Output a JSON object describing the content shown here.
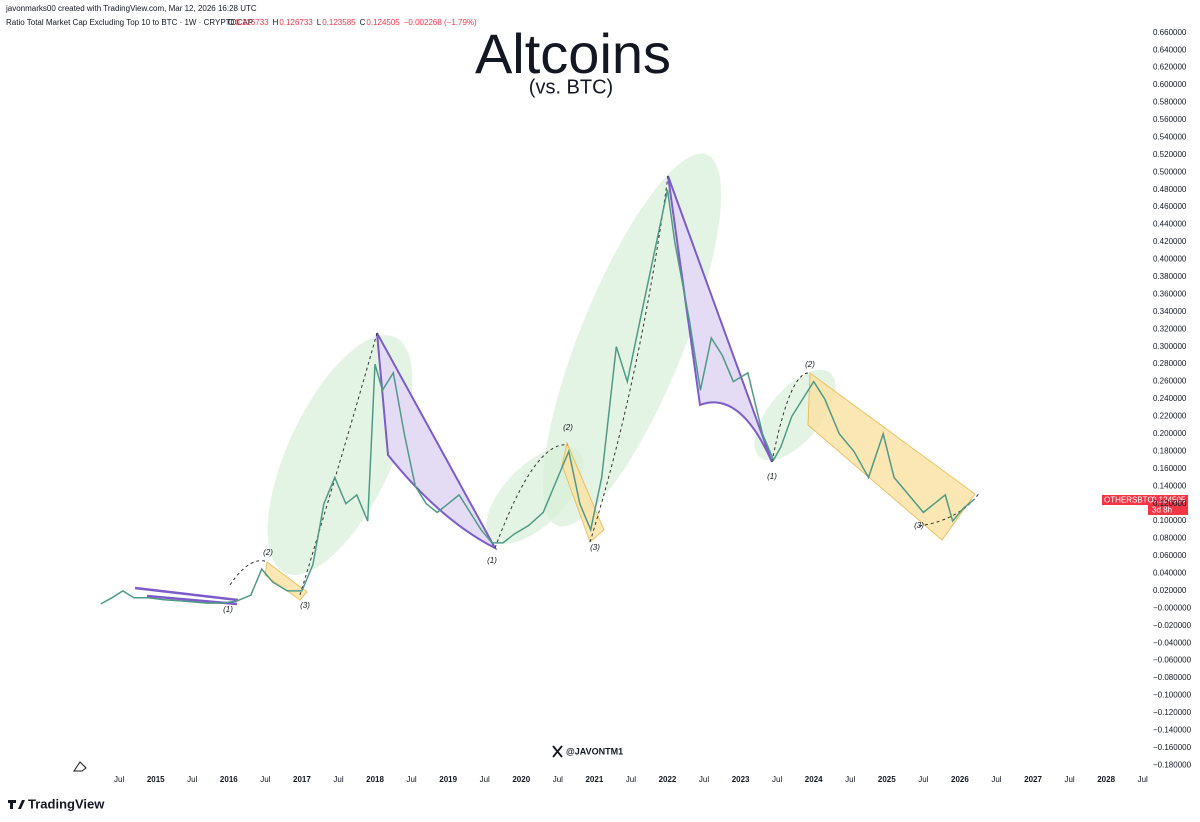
{
  "chart_data": {
    "type": "line",
    "header": "javonmarks00 created with TradingView.com, Mar 12, 2026 16:28 UTC",
    "symbol": "Ratio Total Market Cap Excluding Top 10 to BTC · 1W · CRYPTOCAP",
    "ohlc": [
      {
        "key": "O",
        "text": "0.126733"
      },
      {
        "key": "H",
        "text": "0.126733"
      },
      {
        "key": "L",
        "text": "0.123585"
      },
      {
        "key": "C",
        "text": "0.124505"
      }
    ],
    "change": "−0.002268 (−1.79%)",
    "title": "Altcoins",
    "subtitle": "(vs. BTC)",
    "watermark": "@JAVONTM1",
    "footer": "TradingView",
    "price_label": {
      "name": "OTHERSBTC",
      "value": "0.124505",
      "countdown": "3d 8h"
    },
    "annotations": [
      "(2)",
      "(3)",
      "(1)",
      "(1)",
      "(2)",
      "(3)",
      "(1)",
      "(2)",
      "(3)"
    ],
    "series": [
      {
        "name": "OTHERSBTC",
        "color": "#4f9a86",
        "x": [
          2014.25,
          2014.4,
          2014.55,
          2014.7,
          2014.9,
          2015.1,
          2015.4,
          2015.7,
          2015.9,
          2016.1,
          2016.3,
          2016.45,
          2016.6,
          2016.8,
          2017.0,
          2017.15,
          2017.3,
          2017.45,
          2017.6,
          2017.75,
          2017.9,
          2018.0,
          2018.1,
          2018.25,
          2018.4,
          2018.55,
          2018.7,
          2018.85,
          2019.0,
          2019.15,
          2019.3,
          2019.45,
          2019.6,
          2019.75,
          2019.9,
          2020.1,
          2020.3,
          2020.5,
          2020.65,
          2020.8,
          2020.95,
          2021.1,
          2021.3,
          2021.45,
          2021.6,
          2021.75,
          2021.9,
          2022.0,
          2022.1,
          2022.3,
          2022.45,
          2022.6,
          2022.75,
          2022.9,
          2023.1,
          2023.3,
          2023.45,
          2023.55,
          2023.7,
          2023.85,
          2024.0,
          2024.15,
          2024.35,
          2024.55,
          2024.75,
          2024.95,
          2025.1,
          2025.3,
          2025.5,
          2025.65,
          2025.8,
          2025.9,
          2026.05,
          2026.19
        ],
        "values": [
          0.005,
          0.012,
          0.02,
          0.012,
          0.012,
          0.01,
          0.008,
          0.006,
          0.006,
          0.008,
          0.015,
          0.045,
          0.03,
          0.02,
          0.02,
          0.05,
          0.12,
          0.15,
          0.12,
          0.13,
          0.1,
          0.28,
          0.25,
          0.27,
          0.2,
          0.14,
          0.12,
          0.11,
          0.12,
          0.13,
          0.11,
          0.09,
          0.075,
          0.075,
          0.085,
          0.095,
          0.11,
          0.15,
          0.18,
          0.12,
          0.09,
          0.15,
          0.3,
          0.26,
          0.32,
          0.38,
          0.44,
          0.48,
          0.42,
          0.33,
          0.25,
          0.31,
          0.29,
          0.26,
          0.27,
          0.2,
          0.17,
          0.185,
          0.22,
          0.24,
          0.26,
          0.24,
          0.2,
          0.18,
          0.15,
          0.2,
          0.15,
          0.13,
          0.11,
          0.12,
          0.13,
          0.1,
          0.115,
          0.1245
        ]
      }
    ],
    "xlim": [
      2012.87,
      2028.6
    ],
    "xticks": [
      {
        "value": 2014.5,
        "label": "Jul"
      },
      2015,
      {
        "value": 2015.5,
        "label": "Jul"
      },
      2016,
      {
        "value": 2016.5,
        "label": "Jul"
      },
      2017,
      {
        "value": 2017.5,
        "label": "Jul"
      },
      2018,
      {
        "value": 2018.5,
        "label": "Jul"
      },
      2019,
      {
        "value": 2019.5,
        "label": "Jul"
      },
      2020,
      {
        "value": 2020.5,
        "label": "Jul"
      },
      2021,
      {
        "value": 2021.5,
        "label": "Jul"
      },
      2022,
      {
        "value": 2022.5,
        "label": "Jul"
      },
      2023,
      {
        "value": 2023.5,
        "label": "Jul"
      },
      2024,
      {
        "value": 2024.5,
        "label": "Jul"
      },
      2025,
      {
        "value": 2025.5,
        "label": "Jul"
      },
      2026,
      {
        "value": 2026.5,
        "label": "Jul"
      },
      2027,
      {
        "value": 2027.5,
        "label": "Jul"
      },
      2028,
      {
        "value": 2028.5,
        "label": "Jul"
      }
    ],
    "ylim": [
      -0.19,
      0.67
    ],
    "yticks": [
      {
        "value": 0.66,
        "label": "0.660000"
      },
      {
        "value": 0.64,
        "label": "0.640000"
      },
      {
        "value": 0.62,
        "label": "0.620000"
      },
      {
        "value": 0.6,
        "label": "0.600000"
      },
      {
        "value": 0.58,
        "label": "0.580000"
      },
      {
        "value": 0.56,
        "label": "0.560000"
      },
      {
        "value": 0.54,
        "label": "0.540000"
      },
      {
        "value": 0.52,
        "label": "0.520000"
      },
      {
        "value": 0.5,
        "label": "0.500000"
      },
      {
        "value": 0.48,
        "label": "0.480000"
      },
      {
        "value": 0.46,
        "label": "0.460000"
      },
      {
        "value": 0.44,
        "label": "0.440000"
      },
      {
        "value": 0.42,
        "label": "0.420000"
      },
      {
        "value": 0.4,
        "label": "0.400000"
      },
      {
        "value": 0.38,
        "label": "0.380000"
      },
      {
        "value": 0.36,
        "label": "0.360000"
      },
      {
        "value": 0.34,
        "label": "0.340000"
      },
      {
        "value": 0.32,
        "label": "0.320000"
      },
      {
        "value": 0.3,
        "label": "0.300000"
      },
      {
        "value": 0.28,
        "label": "0.280000"
      },
      {
        "value": 0.26,
        "label": "0.260000"
      },
      {
        "value": 0.24,
        "label": "0.240000"
      },
      {
        "value": 0.22,
        "label": "0.220000"
      },
      {
        "value": 0.2,
        "label": "0.200000"
      },
      {
        "value": 0.18,
        "label": "0.180000"
      },
      {
        "value": 0.16,
        "label": "0.160000"
      },
      {
        "value": 0.14,
        "label": "0.140000"
      },
      {
        "value": 0.12,
        "label": "0.120000"
      },
      {
        "value": 0.1,
        "label": "0.100000"
      },
      {
        "value": 0.08,
        "label": "0.080000"
      },
      {
        "value": 0.06,
        "label": "0.060000"
      },
      {
        "value": 0.04,
        "label": "0.040000"
      },
      {
        "value": 0.02,
        "label": "0.020000"
      },
      {
        "value": 0,
        "label": "−0.000000"
      },
      {
        "value": -0.02,
        "label": "−0.020000"
      },
      {
        "value": -0.04,
        "label": "−0.040000"
      },
      {
        "value": -0.06,
        "label": "−0.060000"
      },
      {
        "value": -0.08,
        "label": "−0.080000"
      },
      {
        "value": -0.1,
        "label": "−0.100000"
      },
      {
        "value": -0.12,
        "label": "−0.120000"
      },
      {
        "value": -0.14,
        "label": "−0.140000"
      },
      {
        "value": -0.16,
        "label": "−0.160000"
      },
      {
        "value": -0.18,
        "label": "−0.180000"
      }
    ],
    "grid": false
  }
}
